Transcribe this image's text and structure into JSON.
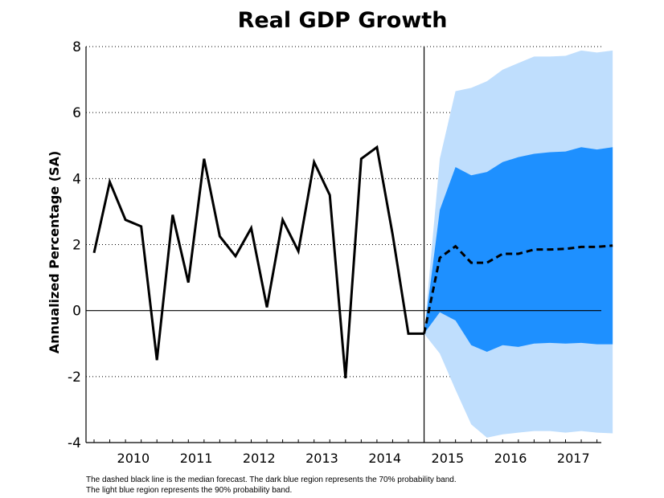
{
  "chart_data": {
    "type": "line",
    "title": "Real GDP Growth",
    "ylabel": "Annualized Percentage (SA)",
    "xlabel": "",
    "ylim": [
      -4,
      8
    ],
    "yticks": [
      -4,
      -2,
      0,
      2,
      4,
      6,
      8
    ],
    "year_labels": [
      "2010",
      "2011",
      "2012",
      "2013",
      "2014",
      "2015",
      "2016",
      "2017"
    ],
    "grid": "horizontal dotted",
    "notes": [
      "The dashed black line is the median forecast. The dark blue region represents the 70% probability band.",
      "The light blue region represents the 90% probability band."
    ],
    "history": {
      "x": [
        "2009Q4",
        "2010Q1",
        "2010Q2",
        "2010Q3",
        "2010Q4",
        "2011Q1",
        "2011Q2",
        "2011Q3",
        "2011Q4",
        "2012Q1",
        "2012Q2",
        "2012Q3",
        "2012Q4",
        "2013Q1",
        "2013Q2",
        "2013Q3",
        "2013Q4",
        "2014Q1",
        "2014Q2",
        "2014Q3",
        "2014Q4",
        "2015Q1"
      ],
      "values": [
        1.75,
        3.9,
        2.75,
        2.55,
        -1.5,
        2.9,
        0.85,
        4.6,
        2.25,
        1.65,
        2.5,
        0.1,
        2.75,
        1.8,
        4.5,
        3.5,
        -2.05,
        4.6,
        4.95,
        2.3,
        -0.7,
        -0.7
      ]
    },
    "forecast": {
      "x": [
        "2015Q1",
        "2015Q2",
        "2015Q3",
        "2015Q4",
        "2016Q1",
        "2016Q2",
        "2016Q3",
        "2016Q4",
        "2017Q1",
        "2017Q2",
        "2017Q3",
        "2017Q4",
        "2018Q1"
      ],
      "median": [
        -0.7,
        1.6,
        1.95,
        1.45,
        1.45,
        1.72,
        1.72,
        1.85,
        1.85,
        1.87,
        1.93,
        1.93,
        1.97
      ],
      "band70_upper": [
        -0.7,
        3.05,
        4.35,
        4.1,
        4.2,
        4.5,
        4.65,
        4.75,
        4.8,
        4.82,
        4.95,
        4.88,
        4.95
      ],
      "band70_lower": [
        -0.7,
        -0.05,
        -0.3,
        -1.05,
        -1.25,
        -1.05,
        -1.1,
        -1.0,
        -0.98,
        -1.0,
        -0.98,
        -1.02,
        -1.02
      ],
      "band90_upper": [
        -0.7,
        4.6,
        6.65,
        6.75,
        6.95,
        7.3,
        7.5,
        7.7,
        7.7,
        7.72,
        7.88,
        7.82,
        7.88
      ],
      "band90_lower": [
        -0.7,
        -1.3,
        -2.4,
        -3.45,
        -3.85,
        -3.75,
        -3.7,
        -3.65,
        -3.65,
        -3.7,
        -3.65,
        -3.7,
        -3.72
      ]
    },
    "colors": {
      "history": "#000000",
      "median": "#000000",
      "band70": "#1e90ff",
      "band90": "#bfdefd",
      "grid": "#000000"
    }
  }
}
